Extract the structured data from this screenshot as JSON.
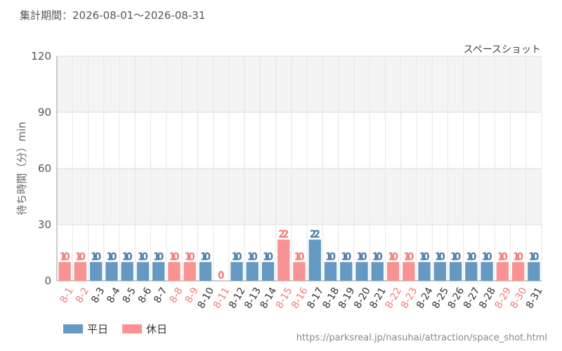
{
  "header": {
    "period": "集計期間：2026-08-01～2026-08-31"
  },
  "legend": {
    "weekday_label": "平日",
    "holiday_label": "休日"
  },
  "source_url": "https://parksreal.jp/nasuhai/attraction/space_shot.html",
  "colors": {
    "weekday": "#6699c2",
    "holiday": "#f99393",
    "weekday_text": "#4a7aa6",
    "holiday_text": "#f07b7b"
  },
  "chart_data": {
    "type": "bar",
    "title": "スペースショット",
    "ylabel": "待ち時間（分）min",
    "xlabel": "",
    "ylim": [
      0,
      120
    ],
    "yticks": [
      0,
      30,
      60,
      90,
      120
    ],
    "grid": true,
    "categories": [
      "8-1",
      "8-2",
      "8-3",
      "8-4",
      "8-5",
      "8-6",
      "8-7",
      "8-8",
      "8-9",
      "8-10",
      "8-11",
      "8-12",
      "8-13",
      "8-14",
      "8-15",
      "8-16",
      "8-17",
      "8-18",
      "8-19",
      "8-20",
      "8-21",
      "8-22",
      "8-23",
      "8-24",
      "8-25",
      "8-26",
      "8-27",
      "8-28",
      "8-29",
      "8-30",
      "8-31"
    ],
    "values": [
      10,
      10,
      10,
      10,
      10,
      10,
      10,
      10,
      10,
      10,
      0,
      10,
      10,
      10,
      22,
      10,
      22,
      10,
      10,
      10,
      10,
      10,
      10,
      10,
      10,
      10,
      10,
      10,
      10,
      10,
      10
    ],
    "day_type": [
      "holiday",
      "holiday",
      "weekday",
      "weekday",
      "weekday",
      "weekday",
      "weekday",
      "holiday",
      "holiday",
      "weekday",
      "holiday",
      "weekday",
      "weekday",
      "weekday",
      "holiday",
      "holiday",
      "weekday",
      "weekday",
      "weekday",
      "weekday",
      "weekday",
      "holiday",
      "holiday",
      "weekday",
      "weekday",
      "weekday",
      "weekday",
      "weekday",
      "holiday",
      "holiday",
      "weekday"
    ]
  }
}
